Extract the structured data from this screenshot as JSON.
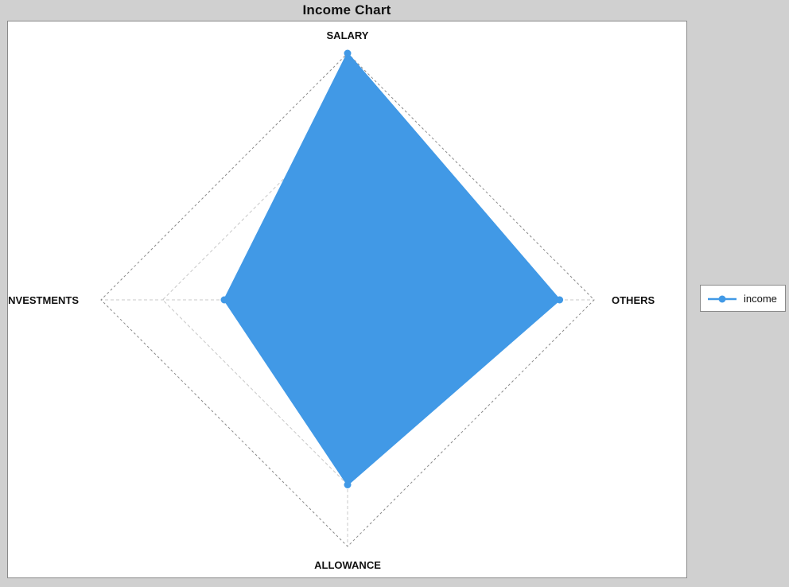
{
  "chart_data": {
    "type": "radar",
    "title": "Income Chart",
    "axes": [
      "SALARY",
      "OTHERS",
      "ALLOWANCE",
      "INVESTMENTS"
    ],
    "series": [
      {
        "name": "income",
        "values": [
          1.0,
          0.86,
          0.75,
          0.5
        ],
        "color": "#4199e6"
      }
    ],
    "rmax": 1.0,
    "gridlines": [
      0.5,
      0.75,
      1.0
    ],
    "grid": true,
    "legend_position": "right"
  }
}
